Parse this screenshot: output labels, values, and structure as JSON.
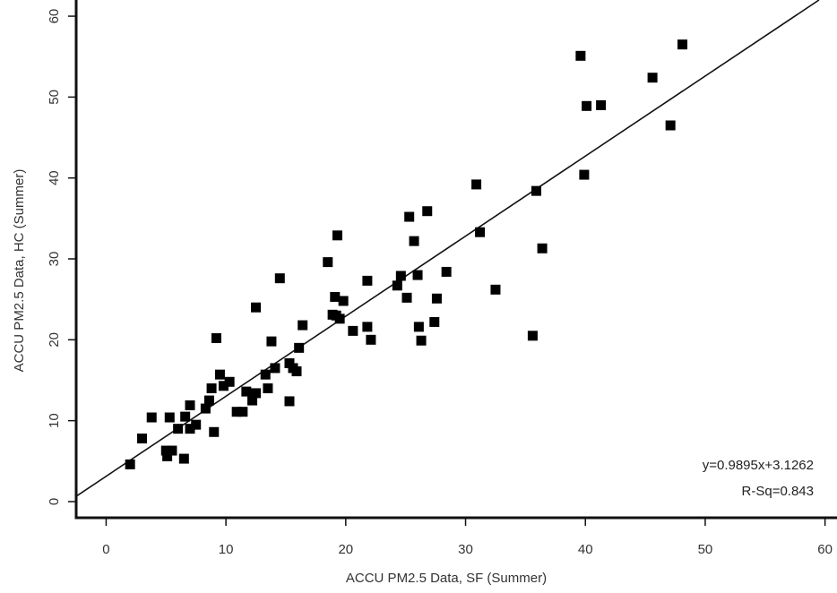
{
  "chart_data": {
    "type": "scatter",
    "title": "",
    "xlabel": "ACCU PM2.5 Data, SF (Summer)",
    "ylabel": "ACCU PM2.5 Data, HC (Summer)",
    "xlim": [
      -2.5,
      61
    ],
    "ylim": [
      -2,
      62
    ],
    "xticks": [
      0,
      10,
      20,
      30,
      40,
      50,
      60
    ],
    "yticks": [
      0,
      10,
      20,
      30,
      40,
      50,
      60
    ],
    "grid": false,
    "fit": {
      "slope": 0.9895,
      "intercept": 3.1262
    },
    "annotations": [
      "y=0.9895x+3.1262",
      "R-Sq=0.843"
    ],
    "series": [
      {
        "points": [
          [
            2.0,
            4.6
          ],
          [
            3.0,
            7.8
          ],
          [
            3.8,
            10.4
          ],
          [
            5.0,
            6.3
          ],
          [
            5.1,
            5.6
          ],
          [
            5.3,
            10.4
          ],
          [
            5.5,
            6.3
          ],
          [
            6.0,
            9.0
          ],
          [
            6.5,
            5.3
          ],
          [
            6.6,
            10.5
          ],
          [
            7.0,
            9.0
          ],
          [
            7.0,
            11.9
          ],
          [
            7.5,
            9.5
          ],
          [
            8.3,
            11.5
          ],
          [
            8.6,
            12.5
          ],
          [
            8.8,
            14.0
          ],
          [
            9.0,
            8.6
          ],
          [
            9.2,
            20.2
          ],
          [
            9.5,
            15.7
          ],
          [
            9.8,
            14.3
          ],
          [
            10.3,
            14.8
          ],
          [
            10.9,
            11.1
          ],
          [
            11.4,
            11.1
          ],
          [
            11.7,
            13.6
          ],
          [
            12.2,
            12.5
          ],
          [
            12.5,
            13.4
          ],
          [
            12.5,
            24.0
          ],
          [
            13.3,
            15.7
          ],
          [
            13.5,
            14.0
          ],
          [
            13.8,
            19.8
          ],
          [
            14.1,
            16.5
          ],
          [
            14.5,
            27.6
          ],
          [
            15.3,
            12.4
          ],
          [
            15.3,
            17.1
          ],
          [
            15.6,
            16.5
          ],
          [
            15.9,
            16.1
          ],
          [
            16.1,
            19.0
          ],
          [
            16.4,
            21.8
          ],
          [
            18.5,
            29.6
          ],
          [
            18.9,
            23.1
          ],
          [
            19.1,
            25.3
          ],
          [
            19.2,
            23.0
          ],
          [
            19.3,
            32.9
          ],
          [
            19.5,
            22.6
          ],
          [
            19.8,
            24.8
          ],
          [
            20.6,
            21.1
          ],
          [
            21.8,
            27.3
          ],
          [
            21.8,
            21.6
          ],
          [
            22.1,
            20.0
          ],
          [
            24.3,
            26.7
          ],
          [
            24.6,
            27.9
          ],
          [
            25.1,
            25.2
          ],
          [
            25.3,
            35.2
          ],
          [
            25.7,
            32.2
          ],
          [
            26.0,
            28.0
          ],
          [
            26.1,
            21.6
          ],
          [
            26.3,
            19.9
          ],
          [
            26.8,
            35.9
          ],
          [
            27.4,
            22.2
          ],
          [
            27.6,
            25.1
          ],
          [
            28.4,
            28.4
          ],
          [
            30.9,
            39.2
          ],
          [
            31.2,
            33.3
          ],
          [
            32.5,
            26.2
          ],
          [
            35.6,
            20.5
          ],
          [
            35.9,
            38.4
          ],
          [
            36.4,
            31.3
          ],
          [
            39.6,
            55.1
          ],
          [
            39.9,
            40.4
          ],
          [
            40.1,
            48.9
          ],
          [
            41.3,
            49.0
          ],
          [
            45.6,
            52.4
          ],
          [
            47.1,
            46.5
          ],
          [
            48.1,
            56.5
          ]
        ]
      }
    ]
  }
}
